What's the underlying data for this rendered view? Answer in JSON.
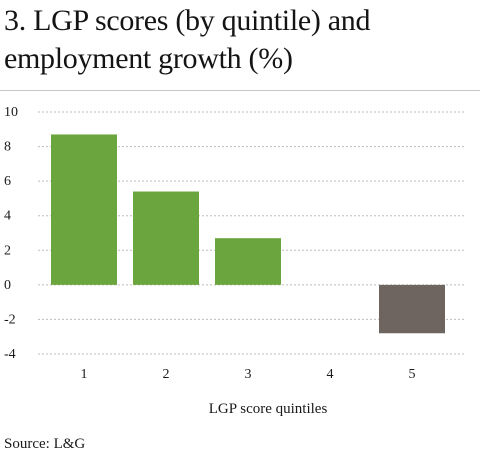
{
  "title": "3. LGP scores (by quintile) and employment growth (%)",
  "source": "Source: L&G",
  "colors": {
    "positive_bar": "#6aa53d",
    "negative_bar": "#6e6560",
    "grid": "#bdbdbd",
    "text": "#1a1a1a"
  },
  "chart_data": {
    "type": "bar",
    "title": "3. LGP scores (by quintile) and employment growth (%)",
    "xlabel": "LGP score quintiles",
    "ylabel": "",
    "categories": [
      "1",
      "2",
      "3",
      "4",
      "5"
    ],
    "values": [
      8.7,
      5.4,
      2.7,
      0,
      -2.8
    ],
    "ylim": [
      -4,
      10
    ],
    "yticks": [
      10,
      8,
      6,
      4,
      2,
      0,
      -2,
      -4
    ],
    "ytick_labels": [
      "10",
      "8",
      "6",
      "4",
      "2",
      "0",
      "-2",
      "-4"
    ],
    "grid": "horizontal dashed",
    "legend": "none"
  }
}
